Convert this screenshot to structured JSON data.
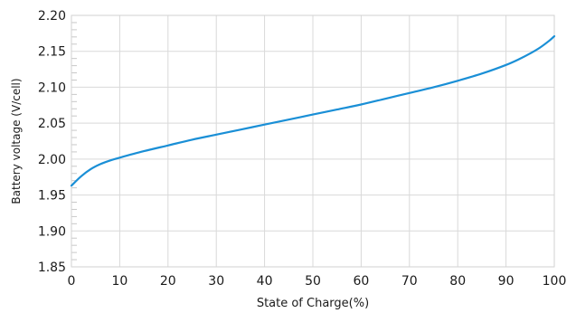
{
  "chart_data": {
    "type": "line",
    "title": "",
    "xlabel": "State of Charge(%)",
    "ylabel": "Battery voltage (V/cell)",
    "xlim": [
      0,
      100
    ],
    "ylim": [
      1.85,
      2.2
    ],
    "x_ticks": [
      0,
      10,
      20,
      30,
      40,
      50,
      60,
      70,
      80,
      90,
      100
    ],
    "y_ticks": [
      1.85,
      1.9,
      1.95,
      2.0,
      2.05,
      2.1,
      2.15,
      2.2
    ],
    "x_tick_labels": [
      "0",
      "10",
      "20",
      "30",
      "40",
      "50",
      "60",
      "70",
      "80",
      "90",
      "100"
    ],
    "y_tick_labels": [
      "1.85",
      "1.90",
      "1.95",
      "2.00",
      "2.05",
      "2.10",
      "2.15",
      "2.20"
    ],
    "grid": true,
    "series": [
      {
        "color": "#1a8fd6",
        "x": [
          0,
          2,
          4,
          6,
          8,
          10,
          15,
          20,
          25,
          30,
          35,
          40,
          45,
          50,
          55,
          60,
          65,
          70,
          75,
          80,
          85,
          90,
          93,
          95,
          97,
          99,
          100
        ],
        "y": [
          1.963,
          1.976,
          1.986,
          1.993,
          1.998,
          2.002,
          2.011,
          2.019,
          2.027,
          2.034,
          2.041,
          2.048,
          2.055,
          2.062,
          2.069,
          2.076,
          2.084,
          2.092,
          2.1,
          2.109,
          2.119,
          2.131,
          2.14,
          2.147,
          2.155,
          2.165,
          2.171
        ]
      }
    ]
  }
}
